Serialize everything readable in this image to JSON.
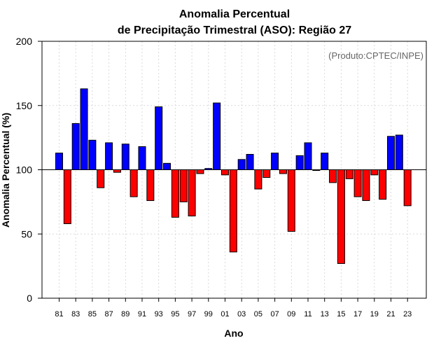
{
  "chart_data": {
    "type": "bar",
    "title": "Anomalia Percentual",
    "subtitle": "de Precipitação Trimestral (ASO): Região 27",
    "xlabel": "Ano",
    "ylabel": "Anomalia Percentual (%)",
    "annotation": "(Produto:CPTEC/INPE)",
    "ylim": [
      0,
      200
    ],
    "yticks": [
      "0",
      "50",
      "100",
      "150",
      "200"
    ],
    "baseline": 100,
    "grid": true,
    "colors": {
      "above": "#0000ff",
      "below": "#ff0000"
    },
    "x_tick_labels": [
      "81",
      "83",
      "85",
      "87",
      "89",
      "91",
      "93",
      "95",
      "97",
      "99",
      "01",
      "03",
      "05",
      "07",
      "09",
      "11",
      "13",
      "15",
      "17",
      "19",
      "21",
      "23"
    ],
    "categories": [
      "1981",
      "1982",
      "1983",
      "1984",
      "1985",
      "1986",
      "1987",
      "1988",
      "1989",
      "1990",
      "1991",
      "1992",
      "1993",
      "1994",
      "1995",
      "1996",
      "1997",
      "1998",
      "1999",
      "2000",
      "2001",
      "2002",
      "2003",
      "2004",
      "2005",
      "2006",
      "2007",
      "2008",
      "2009",
      "2010",
      "2011",
      "2012",
      "2013",
      "2014",
      "2015",
      "2016",
      "2017",
      "2018",
      "2019",
      "2020",
      "2021",
      "2022",
      "2023"
    ],
    "values": [
      113,
      58,
      136,
      163,
      123,
      86,
      121,
      98,
      120,
      79,
      118,
      76,
      149,
      105,
      63,
      75,
      64,
      97,
      101,
      152,
      96,
      36,
      108,
      112,
      85,
      94,
      113,
      97,
      52,
      111,
      121,
      100,
      113,
      90,
      27,
      93,
      79,
      76,
      96,
      77,
      126,
      127,
      72
    ]
  }
}
